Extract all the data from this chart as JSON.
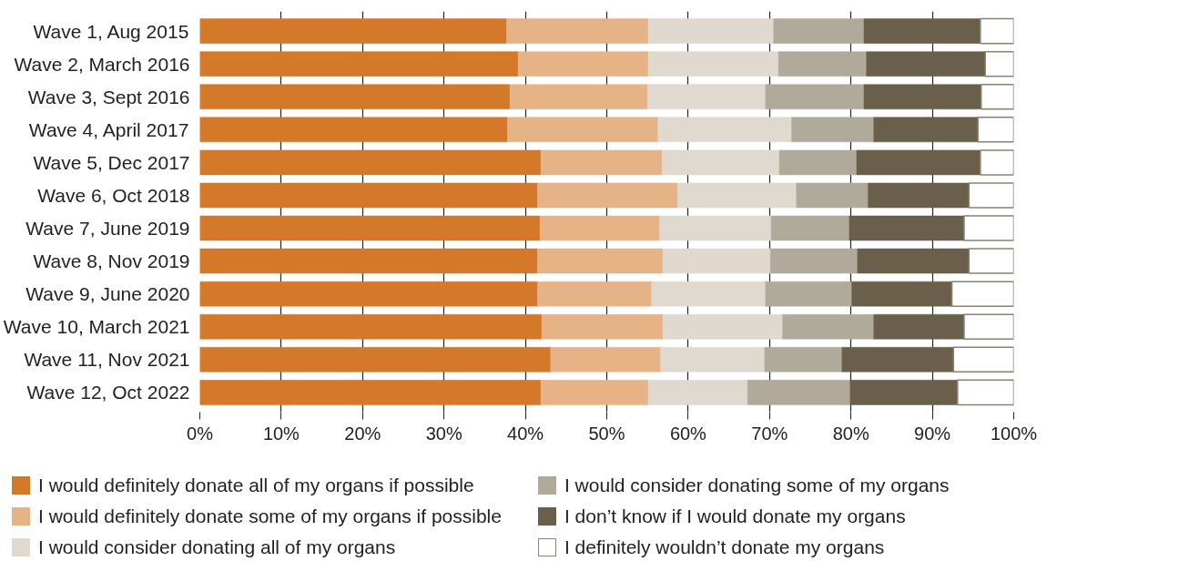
{
  "chart_data": {
    "type": "bar",
    "orientation": "horizontal",
    "stacked": true,
    "categories": [
      "Wave 1, Aug 2015",
      "Wave 2, March 2016",
      "Wave 3, Sept 2016",
      "Wave 4, April 2017",
      "Wave 5, Dec 2017",
      "Wave 6, Oct 2018",
      "Wave 7, June 2019",
      "Wave 8, Nov 2019",
      "Wave 9, June 2020",
      "Wave 10, March 2021",
      "Wave 11, Nov 2021",
      "Wave 12, Oct 2022"
    ],
    "series": [
      {
        "name": "I would definitely donate all of my organs if possible",
        "color": "#d4782a",
        "values": [
          37.7,
          39.1,
          38.1,
          37.8,
          41.9,
          41.5,
          41.8,
          41.5,
          41.5,
          42.0,
          43.1,
          41.9
        ]
      },
      {
        "name": "I would definitely donate some of my organs if possible",
        "color": "#e6b386",
        "values": [
          17.4,
          16.0,
          16.9,
          18.5,
          14.9,
          17.2,
          14.7,
          15.4,
          14.0,
          14.9,
          13.5,
          13.2
        ]
      },
      {
        "name": "I would consider donating all of my organs",
        "color": "#dfd9cf",
        "values": [
          15.4,
          16.0,
          14.5,
          16.4,
          14.4,
          14.6,
          13.7,
          13.2,
          14.0,
          14.7,
          12.8,
          12.2
        ]
      },
      {
        "name": "I would consider donating some of my organs",
        "color": "#b0aa9a",
        "values": [
          11.1,
          10.8,
          12.1,
          10.1,
          9.5,
          8.8,
          9.6,
          10.7,
          10.6,
          11.2,
          9.5,
          12.6
        ]
      },
      {
        "name": "I don’t know if I would donate my organs",
        "color": "#6a5f4b",
        "values": [
          14.3,
          14.6,
          14.4,
          12.8,
          15.2,
          12.4,
          14.1,
          13.7,
          12.3,
          11.1,
          13.7,
          13.2
        ]
      },
      {
        "name": "I definitely wouldn’t donate my organs",
        "color": "#ffffff",
        "values": [
          4.1,
          3.5,
          4.0,
          4.4,
          4.1,
          5.5,
          6.1,
          5.5,
          7.6,
          6.1,
          7.4,
          6.9
        ]
      }
    ],
    "xlim": [
      0,
      100
    ],
    "xticks": [
      {
        "value": 0,
        "label": "0%"
      },
      {
        "value": 10,
        "label": "10%"
      },
      {
        "value": 20,
        "label": "20%"
      },
      {
        "value": 30,
        "label": "30%"
      },
      {
        "value": 40,
        "label": "40%"
      },
      {
        "value": 50,
        "label": "50%"
      },
      {
        "value": 60,
        "label": "60%"
      },
      {
        "value": 70,
        "label": "70%"
      },
      {
        "value": 80,
        "label": "80%"
      },
      {
        "value": 90,
        "label": "90%"
      },
      {
        "value": 100,
        "label": "100%"
      }
    ],
    "grid": "x",
    "legend": "bottom"
  }
}
